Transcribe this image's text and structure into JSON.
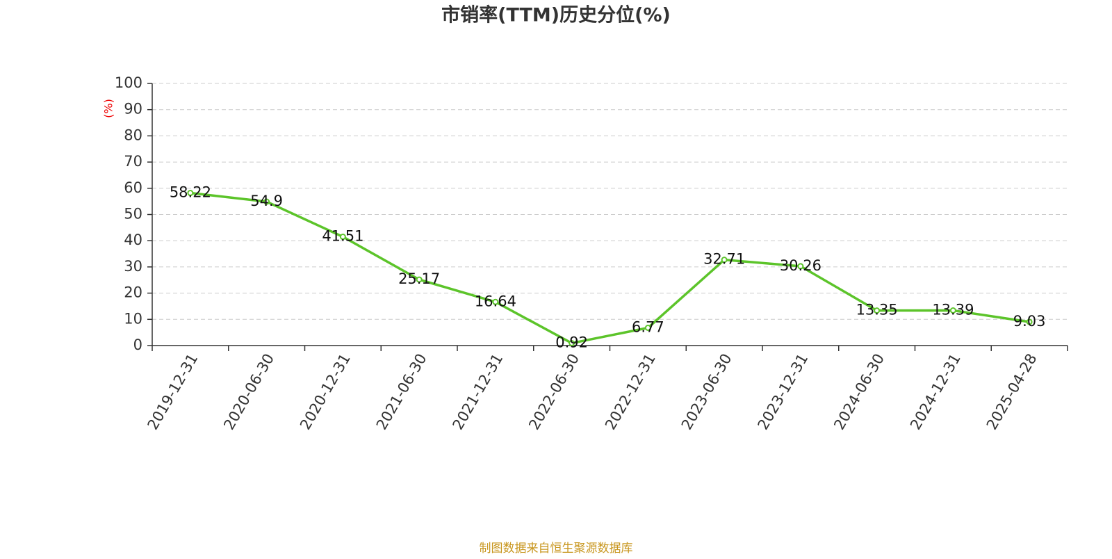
{
  "chart_data": {
    "type": "line",
    "title": "市销率(TTM)历史分位(%)",
    "y_label": "(%)",
    "source": "制图数据来自恒生聚源数据库",
    "categories": [
      "2019-12-31",
      "2020-06-30",
      "2020-12-31",
      "2021-06-30",
      "2021-12-31",
      "2022-06-30",
      "2022-12-31",
      "2023-06-30",
      "2023-12-31",
      "2024-06-30",
      "2024-12-31",
      "2025-04-28"
    ],
    "values": [
      58.22,
      54.9,
      41.51,
      25.17,
      16.64,
      0.92,
      6.77,
      32.71,
      30.26,
      13.35,
      13.39,
      9.03
    ],
    "color": "#5cc42a",
    "ylim": [
      0,
      100
    ],
    "yticks": [
      0,
      10,
      20,
      30,
      40,
      50,
      60,
      70,
      80,
      90,
      100
    ],
    "grid": true
  }
}
